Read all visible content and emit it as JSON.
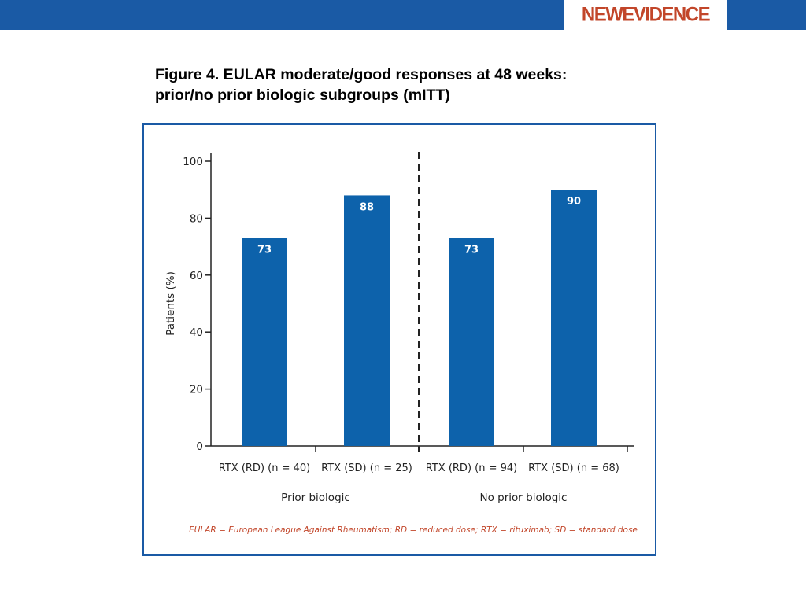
{
  "header": {
    "logo_text": "NEWEVIDENCE",
    "bar_color": "#1a5aa5",
    "logo_color": "#c2462a"
  },
  "figure": {
    "title_line1": "Figure 4. EULAR moderate/good responses at 48 weeks:",
    "title_line2": "prior/no prior biologic subgroups (mITT)"
  },
  "chart_data": {
    "type": "bar",
    "categories": [
      "RTX (RD) (n = 40)",
      "RTX (SD) (n = 25)",
      "RTX (RD) (n = 94)",
      "RTX (SD) (n = 68)"
    ],
    "values": [
      73,
      88,
      73,
      90
    ],
    "data_labels": [
      "73",
      "88",
      "73",
      "90"
    ],
    "groups": [
      {
        "label": "Prior biologic",
        "categories": [
          0,
          1
        ]
      },
      {
        "label": "No prior biologic",
        "categories": [
          2,
          3
        ]
      }
    ],
    "ylabel": "Patients (%)",
    "xlabel": "",
    "ylim": [
      0,
      100
    ],
    "yticks": [
      0,
      20,
      40,
      60,
      80,
      100
    ],
    "ytick_labels": [
      "0",
      "20",
      "40",
      "60",
      "80",
      "100"
    ],
    "group_divider": "dashed",
    "bar_color": "#0d62ab",
    "grid": false,
    "legend": "none",
    "footnote": "EULAR = European League Against Rheumatism; RD = reduced dose; RTX = rituximab; SD = standard dose"
  }
}
